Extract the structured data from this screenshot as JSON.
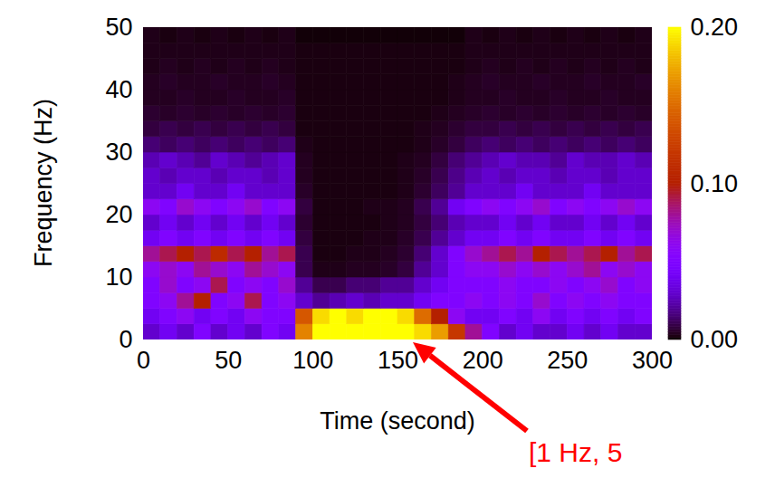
{
  "chart_data": {
    "type": "heatmap",
    "xlabel": "Time (second)",
    "ylabel": "Frequency (Hz)",
    "xlim": [
      0,
      300
    ],
    "xticks": [
      0,
      50,
      100,
      150,
      200,
      250,
      300
    ],
    "ylim": [
      0,
      50
    ],
    "yticks": [
      0,
      10,
      20,
      30,
      40,
      50
    ],
    "x_bins": [
      0,
      10,
      20,
      30,
      40,
      50,
      60,
      70,
      80,
      90,
      100,
      110,
      120,
      130,
      140,
      150,
      160,
      170,
      180,
      190,
      200,
      210,
      220,
      230,
      240,
      250,
      260,
      270,
      280,
      290,
      300
    ],
    "y_bins": [
      0,
      2.5,
      5,
      7.5,
      10,
      12.5,
      15,
      17.5,
      20,
      22.5,
      25,
      27.5,
      30,
      32.5,
      35,
      37.5,
      40,
      42.5,
      45,
      47.5,
      50
    ],
    "cells": [
      [
        0.03,
        0.04,
        0.03,
        0.05,
        0.03,
        0.04,
        0.03,
        0.05,
        0.04,
        0.16,
        0.2,
        0.2,
        0.2,
        0.2,
        0.2,
        0.2,
        0.19,
        0.17,
        0.12,
        0.08,
        0.05,
        0.03,
        0.04,
        0.03,
        0.03,
        0.04,
        0.03,
        0.04,
        0.03,
        0.03
      ],
      [
        0.04,
        0.05,
        0.06,
        0.04,
        0.05,
        0.04,
        0.06,
        0.05,
        0.05,
        0.14,
        0.19,
        0.2,
        0.19,
        0.2,
        0.2,
        0.19,
        0.15,
        0.1,
        0.06,
        0.04,
        0.04,
        0.05,
        0.04,
        0.06,
        0.04,
        0.05,
        0.04,
        0.05,
        0.04,
        0.05
      ],
      [
        0.05,
        0.06,
        0.08,
        0.1,
        0.05,
        0.06,
        0.09,
        0.05,
        0.06,
        0.03,
        0.02,
        0.025,
        0.03,
        0.025,
        0.03,
        0.03,
        0.04,
        0.05,
        0.05,
        0.06,
        0.05,
        0.06,
        0.05,
        0.07,
        0.05,
        0.06,
        0.05,
        0.06,
        0.05,
        0.05
      ],
      [
        0.05,
        0.07,
        0.05,
        0.06,
        0.09,
        0.05,
        0.06,
        0.05,
        0.07,
        0.02,
        0.01,
        0.01,
        0.015,
        0.015,
        0.02,
        0.02,
        0.03,
        0.04,
        0.05,
        0.05,
        0.05,
        0.06,
        0.05,
        0.05,
        0.06,
        0.05,
        0.06,
        0.07,
        0.05,
        0.06
      ],
      [
        0.06,
        0.07,
        0.06,
        0.08,
        0.07,
        0.06,
        0.08,
        0.07,
        0.06,
        0.01,
        0.003,
        0.003,
        0.004,
        0.004,
        0.005,
        0.008,
        0.02,
        0.03,
        0.05,
        0.06,
        0.06,
        0.07,
        0.06,
        0.07,
        0.06,
        0.07,
        0.08,
        0.06,
        0.07,
        0.06
      ],
      [
        0.08,
        0.09,
        0.1,
        0.09,
        0.11,
        0.09,
        0.1,
        0.08,
        0.09,
        0.01,
        0.002,
        0.002,
        0.003,
        0.003,
        0.004,
        0.006,
        0.015,
        0.03,
        0.05,
        0.07,
        0.08,
        0.09,
        0.08,
        0.1,
        0.09,
        0.08,
        0.09,
        0.1,
        0.08,
        0.09
      ],
      [
        0.04,
        0.05,
        0.04,
        0.05,
        0.04,
        0.05,
        0.04,
        0.05,
        0.04,
        0.008,
        0.002,
        0.002,
        0.002,
        0.003,
        0.003,
        0.005,
        0.01,
        0.02,
        0.03,
        0.04,
        0.04,
        0.05,
        0.04,
        0.05,
        0.04,
        0.04,
        0.05,
        0.04,
        0.05,
        0.04
      ],
      [
        0.03,
        0.04,
        0.03,
        0.04,
        0.03,
        0.04,
        0.03,
        0.04,
        0.03,
        0.006,
        0.002,
        0.002,
        0.002,
        0.002,
        0.003,
        0.004,
        0.008,
        0.015,
        0.025,
        0.03,
        0.03,
        0.04,
        0.03,
        0.04,
        0.03,
        0.03,
        0.04,
        0.03,
        0.04,
        0.03
      ],
      [
        0.06,
        0.05,
        0.07,
        0.06,
        0.05,
        0.06,
        0.07,
        0.05,
        0.06,
        0.008,
        0.002,
        0.002,
        0.002,
        0.003,
        0.003,
        0.004,
        0.01,
        0.02,
        0.04,
        0.05,
        0.06,
        0.05,
        0.06,
        0.07,
        0.05,
        0.06,
        0.05,
        0.06,
        0.07,
        0.06
      ],
      [
        0.03,
        0.03,
        0.04,
        0.03,
        0.03,
        0.04,
        0.03,
        0.03,
        0.03,
        0.005,
        0.002,
        0.002,
        0.002,
        0.002,
        0.002,
        0.003,
        0.006,
        0.012,
        0.02,
        0.03,
        0.03,
        0.03,
        0.04,
        0.03,
        0.03,
        0.03,
        0.04,
        0.03,
        0.03,
        0.03
      ],
      [
        0.03,
        0.025,
        0.03,
        0.03,
        0.025,
        0.03,
        0.03,
        0.025,
        0.03,
        0.004,
        0.002,
        0.002,
        0.002,
        0.002,
        0.002,
        0.003,
        0.005,
        0.01,
        0.018,
        0.025,
        0.03,
        0.025,
        0.03,
        0.03,
        0.025,
        0.03,
        0.03,
        0.025,
        0.03,
        0.03
      ],
      [
        0.025,
        0.03,
        0.025,
        0.02,
        0.03,
        0.025,
        0.02,
        0.025,
        0.03,
        0.004,
        0.002,
        0.002,
        0.002,
        0.002,
        0.002,
        0.003,
        0.004,
        0.008,
        0.015,
        0.02,
        0.025,
        0.03,
        0.025,
        0.025,
        0.02,
        0.03,
        0.025,
        0.025,
        0.03,
        0.025
      ],
      [
        0.015,
        0.012,
        0.015,
        0.012,
        0.015,
        0.012,
        0.015,
        0.012,
        0.015,
        0.003,
        0.002,
        0.002,
        0.002,
        0.002,
        0.002,
        0.002,
        0.003,
        0.005,
        0.008,
        0.012,
        0.015,
        0.012,
        0.015,
        0.012,
        0.015,
        0.012,
        0.015,
        0.012,
        0.015,
        0.012
      ],
      [
        0.008,
        0.01,
        0.008,
        0.01,
        0.008,
        0.01,
        0.008,
        0.01,
        0.008,
        0.002,
        0.002,
        0.002,
        0.002,
        0.002,
        0.002,
        0.002,
        0.003,
        0.004,
        0.006,
        0.008,
        0.008,
        0.01,
        0.008,
        0.01,
        0.008,
        0.01,
        0.008,
        0.01,
        0.008,
        0.01
      ],
      [
        0.006,
        0.005,
        0.006,
        0.005,
        0.006,
        0.005,
        0.006,
        0.005,
        0.006,
        0.002,
        0.002,
        0.002,
        0.002,
        0.002,
        0.002,
        0.002,
        0.002,
        0.003,
        0.004,
        0.005,
        0.006,
        0.005,
        0.006,
        0.005,
        0.006,
        0.005,
        0.006,
        0.005,
        0.006,
        0.005
      ],
      [
        0.004,
        0.004,
        0.005,
        0.004,
        0.004,
        0.005,
        0.004,
        0.004,
        0.005,
        0.002,
        0.002,
        0.002,
        0.002,
        0.002,
        0.002,
        0.002,
        0.002,
        0.002,
        0.003,
        0.004,
        0.004,
        0.005,
        0.004,
        0.004,
        0.005,
        0.004,
        0.004,
        0.005,
        0.004,
        0.004
      ],
      [
        0.004,
        0.005,
        0.004,
        0.004,
        0.005,
        0.004,
        0.004,
        0.005,
        0.004,
        0.002,
        0.002,
        0.002,
        0.002,
        0.002,
        0.002,
        0.002,
        0.002,
        0.002,
        0.003,
        0.004,
        0.005,
        0.004,
        0.004,
        0.005,
        0.004,
        0.004,
        0.005,
        0.004,
        0.004,
        0.005
      ],
      [
        0.003,
        0.004,
        0.003,
        0.004,
        0.003,
        0.004,
        0.003,
        0.004,
        0.003,
        0.002,
        0.002,
        0.002,
        0.002,
        0.002,
        0.002,
        0.002,
        0.002,
        0.002,
        0.002,
        0.003,
        0.004,
        0.003,
        0.004,
        0.003,
        0.004,
        0.003,
        0.004,
        0.003,
        0.004,
        0.003
      ],
      [
        0.003,
        0.003,
        0.003,
        0.003,
        0.003,
        0.003,
        0.003,
        0.003,
        0.003,
        0.002,
        0.002,
        0.002,
        0.002,
        0.002,
        0.002,
        0.002,
        0.002,
        0.002,
        0.002,
        0.003,
        0.003,
        0.003,
        0.003,
        0.003,
        0.003,
        0.003,
        0.003,
        0.003,
        0.003,
        0.003
      ],
      [
        0.003,
        0.002,
        0.003,
        0.002,
        0.003,
        0.002,
        0.003,
        0.002,
        0.003,
        0.001,
        0.001,
        0.001,
        0.001,
        0.001,
        0.001,
        0.001,
        0.001,
        0.001,
        0.001,
        0.003,
        0.002,
        0.003,
        0.002,
        0.003,
        0.002,
        0.003,
        0.002,
        0.003,
        0.002,
        0.003
      ]
    ],
    "colorbar": {
      "range": [
        0,
        0.2
      ],
      "ticks": [
        0,
        0.1,
        0.2
      ]
    },
    "annotations": [
      {
        "text": "[1 Hz, 5"
      }
    ]
  }
}
